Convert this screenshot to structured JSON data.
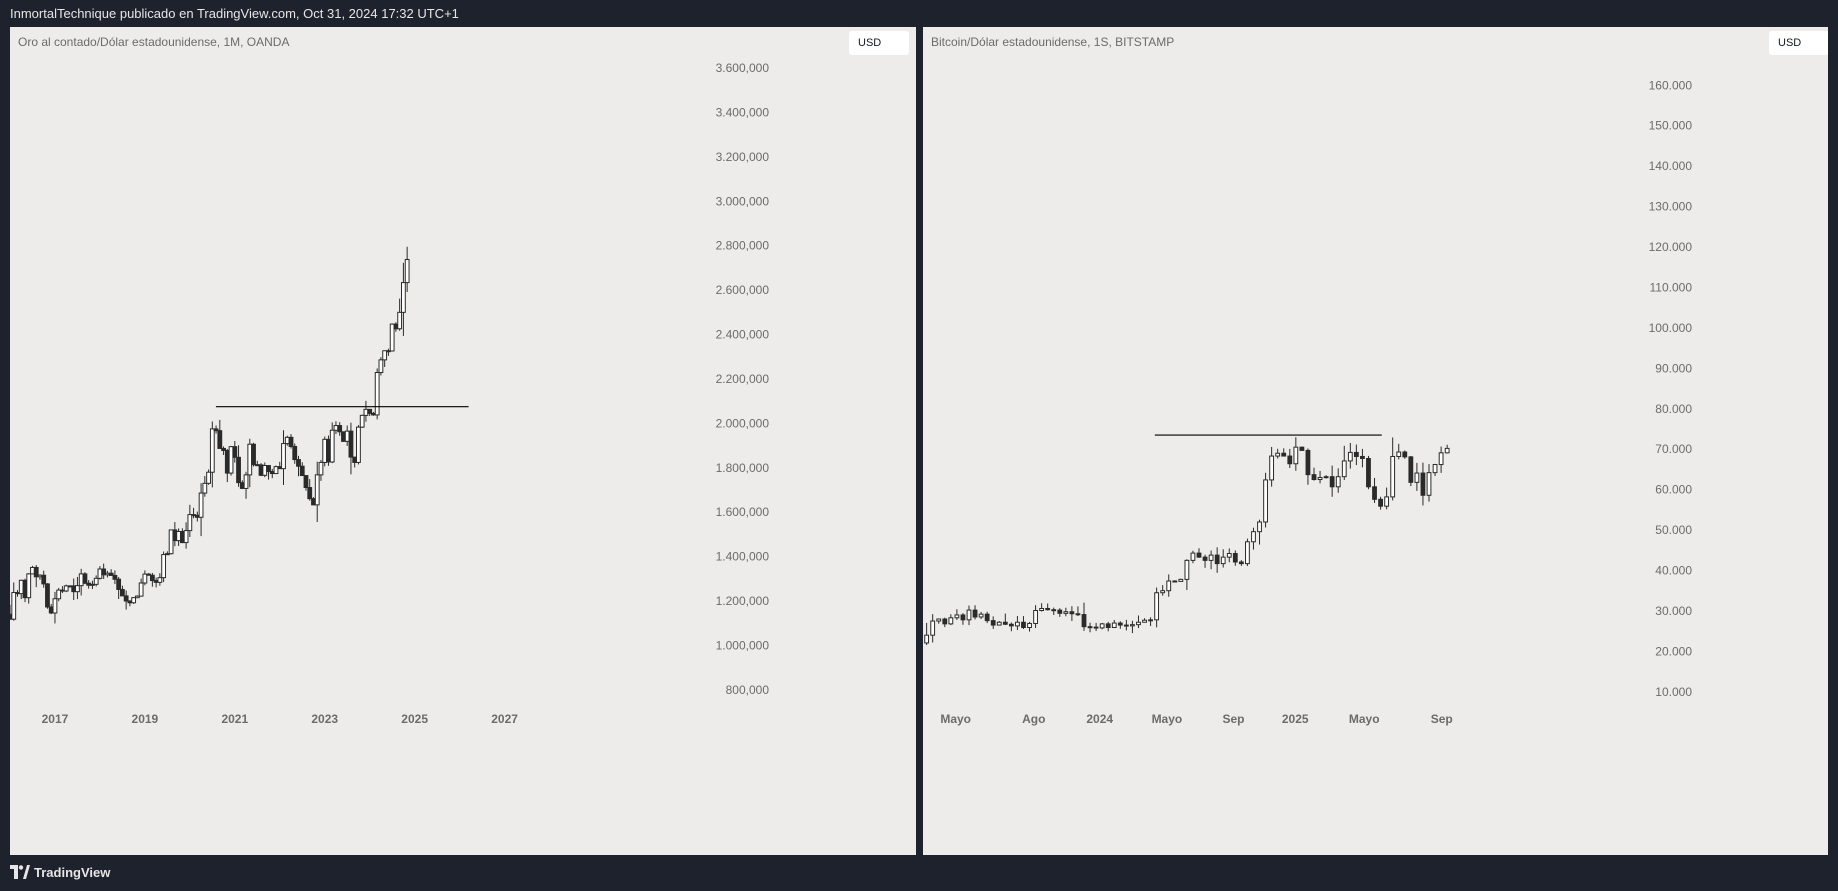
{
  "header": {
    "publish_text": "InmortalTechnique publicado en TradingView.com, Oct 31, 2024 17:32 UTC+1"
  },
  "footer": {
    "brand": "TradingView"
  },
  "colors": {
    "background": "#edeceb",
    "frame": "#1e222d",
    "candle_stroke": "#2a2a2a",
    "candle_up": "#ffffff",
    "candle_down": "#2a2a2a",
    "axis_text": "#6b6b6b"
  },
  "panels": [
    {
      "title": "Oro al contado/Dólar estadounidense, 1M, OANDA",
      "currency": "USD"
    },
    {
      "title": "Bitcoin/Dólar estadounidense, 1S, BITSTAMP",
      "currency": "USD"
    }
  ],
  "chart_data": [
    {
      "type": "candlestick",
      "title": "Oro al contado/Dólar estadounidense, 1M, OANDA",
      "x_start": 2016.0,
      "x_step": 0.08333,
      "xlim": [
        2016.0,
        2028.9
      ],
      "ylim": [
        700,
        3650
      ],
      "y_ticks": [
        "3.600,000",
        "3.400,000",
        "3.200,000",
        "3.000,000",
        "2.800,000",
        "2.600,000",
        "2.400,000",
        "2.200,000",
        "2.000,000",
        "1.800,000",
        "1.600,000",
        "1.400,000",
        "1.200,000",
        "1.000,000",
        "800,000"
      ],
      "y_tick_values": [
        3600,
        3400,
        3200,
        3000,
        2800,
        2600,
        2400,
        2200,
        2000,
        1800,
        1600,
        1400,
        1200,
        1000,
        800
      ],
      "x_ticks": [
        "2017",
        "2019",
        "2021",
        "2023",
        "2025",
        "2027"
      ],
      "x_tick_values": [
        2017,
        2019,
        2021,
        2023,
        2025,
        2027
      ],
      "resistance_line": {
        "y": 2075,
        "x_from": 2020.58,
        "x_to": 2026.2
      },
      "close": [
        1118,
        1238,
        1233,
        1293,
        1215,
        1322,
        1351,
        1309,
        1316,
        1277,
        1173,
        1146,
        1210,
        1249,
        1245,
        1268,
        1268,
        1242,
        1269,
        1322,
        1280,
        1271,
        1275,
        1302,
        1344,
        1318,
        1325,
        1315,
        1298,
        1252,
        1223,
        1200,
        1192,
        1215,
        1222,
        1281,
        1321,
        1316,
        1292,
        1284,
        1305,
        1409,
        1413,
        1520,
        1472,
        1513,
        1463,
        1517,
        1589,
        1586,
        1577,
        1686,
        1730,
        1780,
        1975,
        1967,
        1887,
        1878,
        1776,
        1895,
        1847,
        1733,
        1707,
        1768,
        1906,
        1814,
        1813,
        1766,
        1810,
        1783,
        1774,
        1805,
        1796,
        1909,
        1937,
        1896,
        1837,
        1807,
        1765,
        1711,
        1661,
        1633,
        1768,
        1824,
        1928,
        1826,
        1969,
        1990,
        1962,
        1919,
        1965,
        1848,
        1824,
        1983,
        2036,
        2063,
        2045,
        2038,
        2229,
        2286,
        2327,
        2326,
        2447,
        2426,
        2500,
        2634,
        2738
      ]
    },
    {
      "type": "candlestick",
      "title": "Bitcoin/Dólar estadounidense, 1S, BITSTAMP",
      "x_unit": "weeks since 2023-03-13",
      "xlim": [
        0,
        114
      ],
      "ylim": [
        5000,
        167000
      ],
      "y_ticks": [
        "160.000",
        "150.000",
        "140.000",
        "130.000",
        "120.000",
        "110.000",
        "100.000",
        "90.000",
        "80.000",
        "70.000",
        "60.000",
        "50.000",
        "40.000",
        "30.000",
        "20.000",
        "10.000"
      ],
      "y_tick_values": [
        160000,
        150000,
        140000,
        130000,
        120000,
        110000,
        100000,
        90000,
        80000,
        70000,
        60000,
        50000,
        40000,
        30000,
        20000,
        10000
      ],
      "x_ticks": [
        "Mayo",
        "Ago",
        "2024",
        "Mayo",
        "Sep",
        "2025",
        "Mayo",
        "Sep"
      ],
      "x_tick_values": [
        5.4,
        18.3,
        29.2,
        40.3,
        51.3,
        61.5,
        72.9,
        85.7
      ],
      "resistance_line": {
        "y": 73500,
        "x_from": 38.3,
        "x_to": 75.8
      },
      "close": [
        24000,
        27500,
        28000,
        26800,
        28300,
        29000,
        27800,
        30200,
        28500,
        29200,
        27600,
        26500,
        27200,
        26700,
        26300,
        27200,
        25900,
        26900,
        30100,
        30600,
        30300,
        30200,
        29400,
        29800,
        29300,
        29100,
        26100,
        26000,
        25800,
        26800,
        25900,
        27000,
        26500,
        26300,
        26600,
        27200,
        27700,
        27800,
        34500,
        35000,
        37400,
        37300,
        37800,
        42500,
        44300,
        43300,
        42500,
        43800,
        41700,
        43300,
        44200,
        42100,
        41700,
        47100,
        49600,
        52000,
        62400,
        68300,
        69000,
        68300,
        66400,
        70500,
        69700,
        63700,
        62500,
        63000,
        63200,
        60700,
        63200,
        67100,
        69200,
        68200,
        67700,
        60700,
        57600,
        55900,
        58200,
        68200,
        69300,
        68100,
        61800,
        64100,
        58600,
        64200,
        66200,
        69100,
        70200
      ]
    }
  ]
}
